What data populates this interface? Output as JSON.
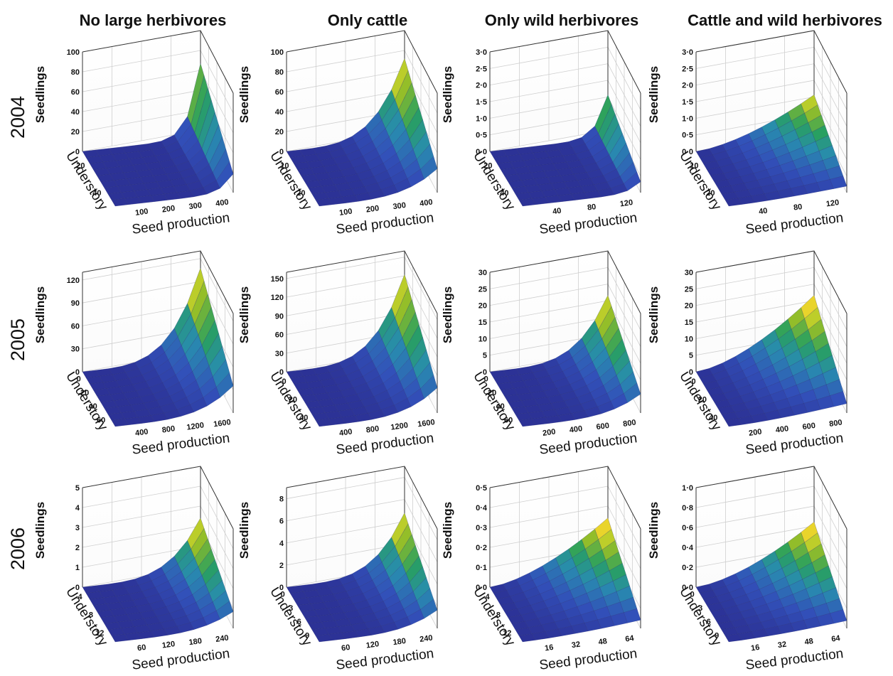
{
  "chart_data": {
    "type": "surface",
    "z_label": "Seedlings",
    "y_label": "Understory",
    "x_label": "Seed production",
    "columns": [
      "No large herbivores",
      "Only cattle",
      "Only wild herbivores",
      "Cattle and wild herbivores"
    ],
    "rows": [
      "2004",
      "2005",
      "2006"
    ],
    "panels": [
      {
        "id": "r0c0",
        "row": "2004",
        "column": "No large herbivores",
        "z_ticks": [
          "0",
          "20",
          "40",
          "60",
          "80",
          "100"
        ],
        "zlim": [
          0,
          100
        ],
        "y_ticks": [
          "20",
          "40"
        ],
        "x_ticks": [
          "100",
          "200",
          "300",
          "400"
        ],
        "surface_max": 75,
        "shape": "steep"
      },
      {
        "id": "r0c1",
        "row": "2004",
        "column": "Only cattle",
        "z_ticks": [
          "0",
          "20",
          "40",
          "60",
          "80",
          "100"
        ],
        "zlim": [
          0,
          100
        ],
        "y_ticks": [
          "10",
          "20"
        ],
        "x_ticks": [
          "100",
          "200",
          "300",
          "400"
        ],
        "surface_max": 80,
        "shape": "exp"
      },
      {
        "id": "r0c2",
        "row": "2004",
        "column": "Only wild herbivores",
        "z_ticks": [
          "0·0",
          "0·5",
          "1·0",
          "1·5",
          "2·0",
          "2·5",
          "3·0"
        ],
        "zlim": [
          0,
          3
        ],
        "y_ticks": [
          "20",
          "40"
        ],
        "x_ticks": [
          "40",
          "80",
          "120"
        ],
        "surface_max": 1.3,
        "shape": "steep"
      },
      {
        "id": "r0c3",
        "row": "2004",
        "column": "Cattle and wild herbivores",
        "z_ticks": [
          "0·0",
          "0·5",
          "1·0",
          "1·5",
          "2·0",
          "2·5",
          "3·0"
        ],
        "zlim": [
          0,
          3
        ],
        "y_ticks": [
          "10",
          "20"
        ],
        "x_ticks": [
          "40",
          "80",
          "120"
        ],
        "surface_max": 1.3,
        "shape": "ramp"
      },
      {
        "id": "r1c0",
        "row": "2005",
        "column": "No large herbivores",
        "z_ticks": [
          "0",
          "30",
          "60",
          "90",
          "120"
        ],
        "zlim": [
          0,
          130
        ],
        "y_ticks": [
          "0",
          "20",
          "40",
          "60"
        ],
        "x_ticks": [
          "400",
          "800",
          "1200",
          "1600"
        ],
        "surface_max": 118,
        "shape": "exp"
      },
      {
        "id": "r1c1",
        "row": "2005",
        "column": "Only cattle",
        "z_ticks": [
          "0",
          "30",
          "60",
          "90",
          "120",
          "150"
        ],
        "zlim": [
          0,
          160
        ],
        "y_ticks": [
          "0",
          "20",
          "40"
        ],
        "x_ticks": [
          "400",
          "800",
          "1200",
          "1600"
        ],
        "surface_max": 135,
        "shape": "exp"
      },
      {
        "id": "r1c2",
        "row": "2005",
        "column": "Only wild herbivores",
        "z_ticks": [
          "0",
          "5",
          "10",
          "15",
          "20",
          "25",
          "30"
        ],
        "zlim": [
          0,
          30
        ],
        "y_ticks": [
          "0",
          "20",
          "40",
          "60"
        ],
        "x_ticks": [
          "200",
          "400",
          "600",
          "800"
        ],
        "surface_max": 19,
        "shape": "exp"
      },
      {
        "id": "r1c3",
        "row": "2005",
        "column": "Cattle and wild herbivores",
        "z_ticks": [
          "0",
          "5",
          "10",
          "15",
          "20",
          "25",
          "30"
        ],
        "zlim": [
          0,
          30
        ],
        "y_ticks": [
          "0",
          "20",
          "40"
        ],
        "x_ticks": [
          "200",
          "400",
          "600",
          "800"
        ],
        "surface_max": 19,
        "shape": "ramp"
      },
      {
        "id": "r2c0",
        "row": "2006",
        "column": "No large herbivores",
        "z_ticks": [
          "0",
          "1",
          "2",
          "3",
          "4",
          "5"
        ],
        "zlim": [
          0,
          5
        ],
        "y_ticks": [
          "4",
          "8",
          "12"
        ],
        "x_ticks": [
          "60",
          "120",
          "180",
          "240"
        ],
        "surface_max": 2.8,
        "shape": "exp"
      },
      {
        "id": "r2c1",
        "row": "2006",
        "column": "Only cattle",
        "z_ticks": [
          "0",
          "2",
          "4",
          "6",
          "8"
        ],
        "zlim": [
          0,
          9
        ],
        "y_ticks": [
          "0",
          "3",
          "6",
          "9"
        ],
        "x_ticks": [
          "60",
          "120",
          "180",
          "240"
        ],
        "surface_max": 5.5,
        "shape": "exp"
      },
      {
        "id": "r2c2",
        "row": "2006",
        "column": "Only wild herbivores",
        "z_ticks": [
          "0·0",
          "0·1",
          "0·2",
          "0·3",
          "0·4",
          "0·5"
        ],
        "zlim": [
          0,
          0.5
        ],
        "y_ticks": [
          "4",
          "8",
          "12"
        ],
        "x_ticks": [
          "16",
          "32",
          "48",
          "64"
        ],
        "surface_max": 0.28,
        "shape": "ramp"
      },
      {
        "id": "r2c3",
        "row": "2006",
        "column": "Cattle and wild herbivores",
        "z_ticks": [
          "0·0",
          "0·2",
          "0·4",
          "0·6",
          "0·8",
          "1·0"
        ],
        "zlim": [
          0,
          1
        ],
        "y_ticks": [
          "0",
          "3",
          "6",
          "9"
        ],
        "x_ticks": [
          "16",
          "32",
          "48",
          "64"
        ],
        "surface_max": 0.52,
        "shape": "ramp"
      }
    ]
  }
}
